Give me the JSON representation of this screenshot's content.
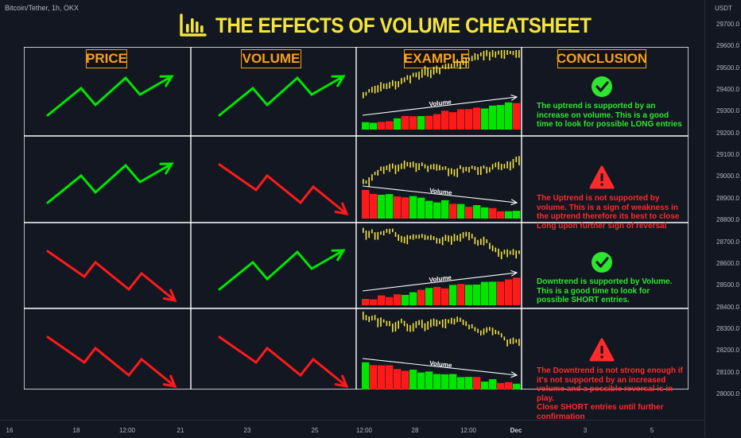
{
  "chart": {
    "symbol": "Bitcoin/Tether, 1h, OKX",
    "title": "THE EFFECTS OF VOLUME CHEATSHEET",
    "icon": "bar-chart-icon"
  },
  "columns": [
    "PRICE",
    "VOLUME",
    "EXAMPLE",
    "CONCLUSION"
  ],
  "volume_label": "Volume",
  "rows": [
    {
      "price": "up",
      "volume": "up",
      "status": "supported",
      "status_icon": "check-icon",
      "conclusion_color": "#2ee62e",
      "conclusion": [
        "The uptrend is supported by an",
        "increase on volume. This is a good",
        "time to look for possible LONG entries"
      ]
    },
    {
      "price": "up",
      "volume": "down",
      "status": "warning",
      "status_icon": "warning-icon",
      "conclusion_color": "#ff2a2a",
      "conclusion": [
        "The Uptrend is not supported by",
        "volume. This is a sign of weakness in",
        "the uptrend therefore its best to close",
        "Long upon further sign of reversal"
      ]
    },
    {
      "price": "down",
      "volume": "up",
      "status": "supported",
      "status_icon": "check-icon",
      "conclusion_color": "#2ee62e",
      "conclusion": [
        "Downtrend is supported by Volume.",
        "This is a good time to look for",
        "possible SHORT entries."
      ]
    },
    {
      "price": "down",
      "volume": "down",
      "status": "warning",
      "status_icon": "warning-icon",
      "conclusion_color": "#ff2a2a",
      "conclusion": [
        "The Downtrend is not strong enough if",
        "it's not supported by an increased",
        "volume and a possible reversal is in play.",
        "Close SHORT entries until further",
        "confirmation"
      ]
    }
  ],
  "price_axis": {
    "unit": "USDT",
    "ticks": [
      "29700.0",
      "29600.0",
      "29500.0",
      "29400.0",
      "29300.0",
      "29200.0",
      "29100.0",
      "29000.0",
      "28900.0",
      "28800.0",
      "28700.0",
      "28600.0",
      "28500.0",
      "28400.0",
      "28300.0",
      "28200.0",
      "28100.0",
      "28000.0"
    ]
  },
  "time_axis": {
    "ticks": [
      {
        "label": "16",
        "bold": false
      },
      {
        "label": "18",
        "bold": false
      },
      {
        "label": "12:00",
        "bold": false
      },
      {
        "label": "21",
        "bold": false
      },
      {
        "label": "23",
        "bold": false
      },
      {
        "label": "25",
        "bold": false
      },
      {
        "label": "12:00",
        "bold": false
      },
      {
        "label": "28",
        "bold": false
      },
      {
        "label": "12:00",
        "bold": false
      },
      {
        "label": "Dec",
        "bold": true
      },
      {
        "label": "3",
        "bold": false
      },
      {
        "label": "5",
        "bold": false
      }
    ]
  },
  "colors": {
    "up": "#00e600",
    "down": "#ff1a1a",
    "candle": "#f5e53b",
    "grid": "#ffffff",
    "header_text": "#f5a023",
    "title": "#f5e53b"
  }
}
